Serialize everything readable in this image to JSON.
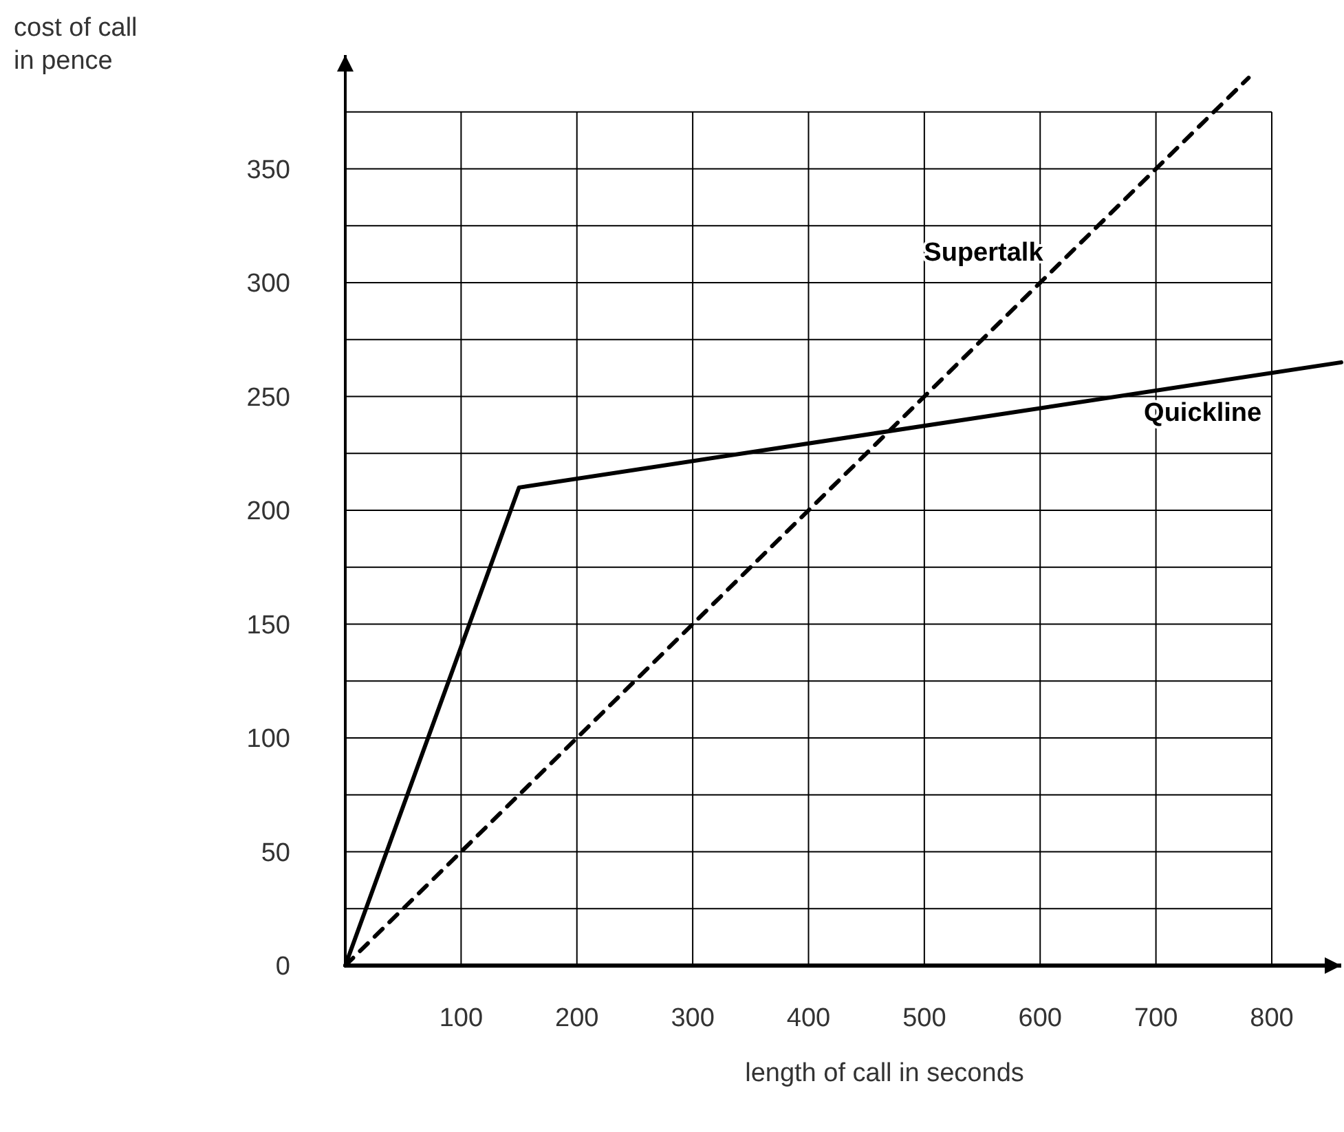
{
  "chart_data": {
    "type": "line",
    "xlabel": "length of call in seconds",
    "ylabel": "cost of call\nin pence",
    "xlim": [
      0,
      860
    ],
    "ylim": [
      0,
      400
    ],
    "xticks": [
      100,
      200,
      300,
      400,
      500,
      600,
      700,
      800
    ],
    "yticks": [
      0,
      {
        "value": 25,
        "label": null
      },
      50,
      {
        "value": 75,
        "label": null
      },
      100,
      {
        "value": 125,
        "label": null
      },
      150,
      {
        "value": 175,
        "label": null
      },
      200,
      {
        "value": 225,
        "label": null
      },
      250,
      {
        "value": 275,
        "label": null
      },
      300,
      {
        "value": 325,
        "label": null
      },
      350,
      {
        "value": 375,
        "label": null
      }
    ],
    "grid": true,
    "marker": "none",
    "series": [
      {
        "name": "Supertalk",
        "color": "#000000",
        "line_style": "dashed",
        "x": [
          0,
          780
        ],
        "values": [
          0,
          390
        ]
      },
      {
        "name": "Quickline",
        "color": "#000000",
        "line_style": "solid",
        "x": [
          0,
          150,
          860
        ],
        "values": [
          0,
          210,
          265
        ]
      }
    ]
  }
}
